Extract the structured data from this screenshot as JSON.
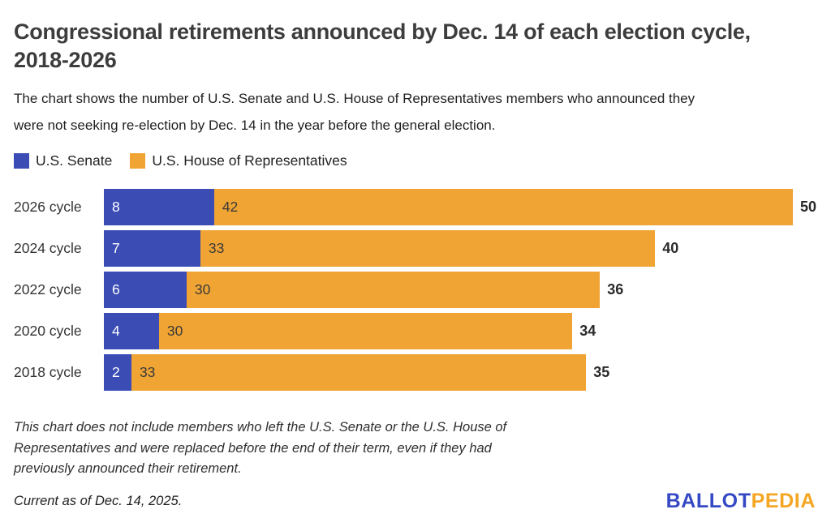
{
  "title": "Congressional retirements announced by Dec. 14 of each election cycle,\n2018-2026",
  "subtitle": "The chart shows the number of U.S. Senate and U.S. House of Representatives members who announced they\nwere not seeking re-election by Dec. 14 in the year before the general election.",
  "legend": [
    {
      "label": "U.S. Senate",
      "color": "#3b4db5"
    },
    {
      "label": "U.S. House of Representatives",
      "color": "#f0a433"
    }
  ],
  "chart_data": {
    "type": "bar",
    "orientation": "horizontal",
    "stacked": true,
    "title": "Congressional retirements announced by Dec. 14 of each election cycle, 2018-2026",
    "categories": [
      "2026 cycle",
      "2024 cycle",
      "2022 cycle",
      "2020 cycle",
      "2018 cycle"
    ],
    "series": [
      {
        "name": "U.S. Senate",
        "color": "#3b4db5",
        "values": [
          8,
          7,
          6,
          4,
          2
        ]
      },
      {
        "name": "U.S. House of Representatives",
        "color": "#f0a433",
        "values": [
          42,
          33,
          30,
          30,
          33
        ]
      }
    ],
    "totals": [
      50,
      40,
      36,
      34,
      35
    ],
    "xmax": 50,
    "xlabel": "",
    "ylabel": "",
    "grid": false,
    "legend_position": "top-left",
    "value_labels": "inside-left",
    "total_labels": "outside-right"
  },
  "footnote": "This chart does not include members who left the U.S. Senate or the U.S. House of\nRepresentatives and were replaced before the end of their term, even if they had\npreviously announced their retirement.",
  "current_as_of": "Current as of Dec. 14, 2025.",
  "logo": {
    "part1": "BALLOT",
    "part2": "PEDIA",
    "color1": "#3549c4",
    "color2": "#f5a623"
  },
  "colors": {
    "senate": "#3b4db5",
    "house": "#f0a433",
    "title_text": "#3d3d3d",
    "background": "#ffffff"
  }
}
